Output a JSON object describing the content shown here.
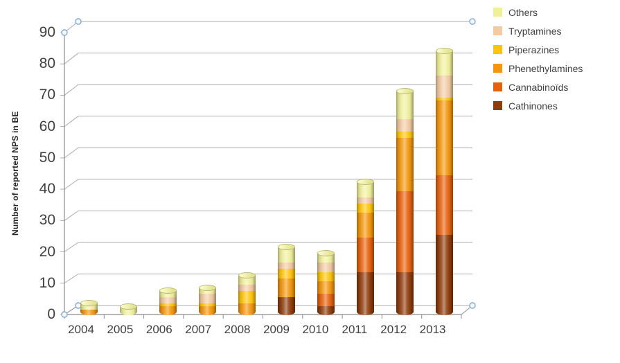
{
  "chart": {
    "background": "#ffffff",
    "gridline_color": "#ababab",
    "axis_color": "#8c8c8c",
    "handle_color": "#7fa8d0"
  },
  "y_axis": {
    "title": "Number of reported NPS in BE",
    "ticks": [
      0,
      10,
      20,
      30,
      40,
      50,
      60,
      70,
      80,
      90
    ]
  },
  "legend": {
    "items": [
      {
        "label": "Others",
        "color": "#f0f09c"
      },
      {
        "label": "Tryptamines",
        "color": "#f2cba3"
      },
      {
        "label": "Piperazines",
        "color": "#ffc50d"
      },
      {
        "label": "Phenethylamines",
        "color": "#f2960d"
      },
      {
        "label": "Cannabinoïds",
        "color": "#e5610e"
      },
      {
        "label": "Cathinones",
        "color": "#8f3c0c"
      }
    ]
  },
  "chart_data": {
    "type": "bar",
    "subtype": "stacked-cylinder-3d",
    "title": "",
    "xlabel": "",
    "ylabel": "Number of reported NPS in BE",
    "ylim": [
      0,
      90
    ],
    "ytick_step": 10,
    "grid": true,
    "legend_position": "top-right",
    "categories": [
      "2004",
      "2005",
      "2006",
      "2007",
      "2008",
      "2009",
      "2010",
      "2011",
      "2012",
      "2013"
    ],
    "series": [
      {
        "name": "Cathinones",
        "color": "#8f3c0c",
        "values": [
          0,
          0,
          0,
          0,
          0,
          5,
          2,
          13,
          13,
          25
        ]
      },
      {
        "name": "Cannabinoïds",
        "color": "#e5610e",
        "values": [
          0,
          0,
          0,
          0,
          0,
          0,
          4,
          11,
          26,
          19
        ]
      },
      {
        "name": "Phenethylamines",
        "color": "#f2960d",
        "values": [
          1,
          0,
          2,
          2,
          3,
          6,
          4,
          8,
          17,
          24
        ]
      },
      {
        "name": "Piperazines",
        "color": "#ffc50d",
        "values": [
          0,
          0,
          1,
          1,
          4,
          3,
          3,
          3,
          2,
          1
        ]
      },
      {
        "name": "Tryptamines",
        "color": "#f2cba3",
        "values": [
          0,
          0,
          2,
          3,
          2,
          2,
          3,
          2,
          4,
          7
        ]
      },
      {
        "name": "Others",
        "color": "#f0f09c",
        "values": [
          2,
          2,
          2,
          2,
          3,
          5,
          3,
          5,
          9,
          8
        ]
      }
    ]
  }
}
